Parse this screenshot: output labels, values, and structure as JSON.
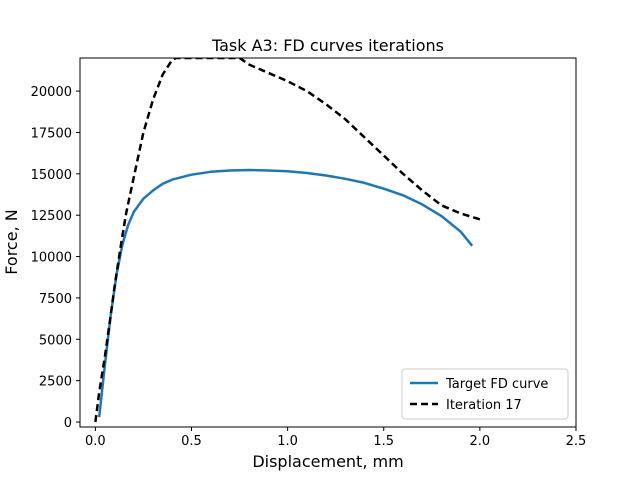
{
  "chart_data": {
    "type": "line",
    "title": "Task A3: FD curves iterations",
    "xlabel": "Displacement, mm",
    "ylabel": "Force, N",
    "xlim": [
      -0.08,
      2.5
    ],
    "ylim": [
      -300,
      22000
    ],
    "xticks": [
      0.0,
      0.5,
      1.0,
      1.5,
      2.0,
      2.5
    ],
    "xtick_labels": [
      "0.0",
      "0.5",
      "1.0",
      "1.5",
      "2.0",
      "2.5"
    ],
    "yticks": [
      0,
      2500,
      5000,
      7500,
      10000,
      12500,
      15000,
      17500,
      20000
    ],
    "ytick_labels": [
      "0",
      "2500",
      "5000",
      "7500",
      "10000",
      "12500",
      "15000",
      "17500",
      "20000"
    ],
    "grid": false,
    "legend_position": "lower-right",
    "series": [
      {
        "name": "Target FD curve",
        "color": "#1f77b4",
        "style": "solid",
        "x": [
          0.02,
          0.05,
          0.08,
          0.11,
          0.14,
          0.17,
          0.2,
          0.25,
          0.3,
          0.35,
          0.4,
          0.5,
          0.6,
          0.7,
          0.8,
          0.9,
          1.0,
          1.1,
          1.2,
          1.3,
          1.4,
          1.5,
          1.6,
          1.7,
          1.8,
          1.9,
          1.96
        ],
        "y": [
          300,
          3500,
          6500,
          8900,
          10700,
          11900,
          12700,
          13500,
          14000,
          14400,
          14650,
          14950,
          15120,
          15200,
          15230,
          15200,
          15150,
          15050,
          14900,
          14700,
          14450,
          14100,
          13700,
          13150,
          12450,
          11500,
          10650
        ]
      },
      {
        "name": "Iteration 17",
        "color": "#000000",
        "style": "dashed",
        "x": [
          0.0,
          0.02,
          0.05,
          0.08,
          0.1,
          0.13,
          0.16,
          0.2,
          0.25,
          0.3,
          0.35,
          0.4,
          0.42,
          0.75,
          0.8,
          0.9,
          1.0,
          1.1,
          1.2,
          1.3,
          1.4,
          1.5,
          1.6,
          1.7,
          1.8,
          1.9,
          2.0
        ],
        "y": [
          0,
          1800,
          4000,
          6500,
          8200,
          10500,
          12600,
          14800,
          17500,
          19500,
          21000,
          21900,
          22000,
          22000,
          21600,
          21100,
          20600,
          20000,
          19200,
          18300,
          17200,
          16100,
          15000,
          14000,
          13100,
          12600,
          12250
        ]
      }
    ]
  }
}
